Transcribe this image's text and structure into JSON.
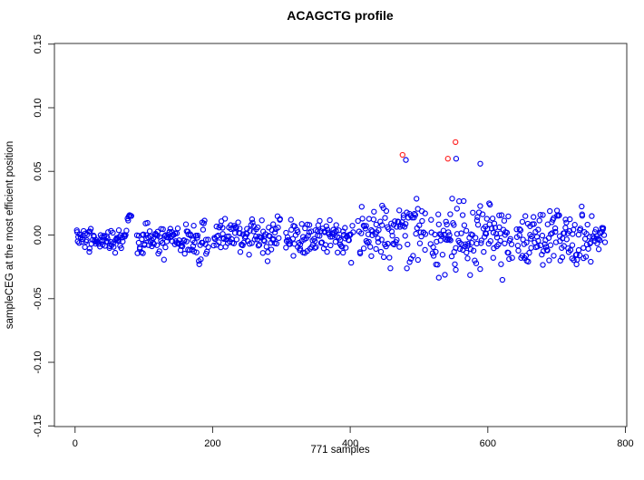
{
  "figure": {
    "title": "ACAGCTG profile",
    "xlabel": "771 samples",
    "ylabel": "sampleCEG at the most efficient position"
  },
  "chart_data": {
    "type": "scatter",
    "title": "ACAGCTG profile",
    "xlabel": "771 samples",
    "ylabel": "sampleCEG at the most efficient position",
    "n_samples": 771,
    "x_box": [
      -30,
      802
    ],
    "y_box": [
      -0.1505,
      0.1505
    ],
    "x_ticks": [
      0,
      200,
      400,
      600,
      800
    ],
    "x_tick_labels": [
      "0",
      "200",
      "400",
      "600",
      "800"
    ],
    "y_ticks": [
      -0.15,
      -0.1,
      -0.05,
      0.0,
      0.05,
      0.1,
      0.15
    ],
    "y_tick_labels": [
      "-0.15",
      "-0.10",
      "-0.05",
      "0.00",
      "0.05",
      "0.10",
      "0.15"
    ],
    "colors": {
      "point": "#0000ee",
      "outlier": "#ff2222",
      "axis": "#333333"
    },
    "point_radius": 2.6,
    "point_stroke_width": 1.15,
    "outlier_points": [
      [
        476,
        0.063
      ],
      [
        542,
        0.06
      ],
      [
        553,
        0.073
      ]
    ],
    "notable_blue_points": [
      [
        481,
        0.059
      ],
      [
        554,
        0.06
      ],
      [
        589,
        0.056
      ]
    ],
    "blue_point_generator": {
      "seed": 20170917,
      "segments": [
        {
          "x0": 2,
          "x1": 82,
          "n": 80,
          "bias": -0.004,
          "sigma": 0.0065,
          "lo": -0.02,
          "hi": 0.016,
          "tail_n": 10,
          "tail_rise": 0.034
        },
        {
          "x0": 90,
          "x1": 194,
          "n": 110,
          "bias": -0.004,
          "sigma": 0.01,
          "lo": -0.028,
          "hi": 0.036,
          "tail_n": 0,
          "tail_rise": 0
        },
        {
          "x0": 202,
          "x1": 298,
          "n": 98,
          "bias": 0.001,
          "sigma": 0.011,
          "lo": -0.032,
          "hi": 0.03,
          "tail_n": 0,
          "tail_rise": 0
        },
        {
          "x0": 306,
          "x1": 404,
          "n": 99,
          "bias": -0.002,
          "sigma": 0.01,
          "lo": -0.027,
          "hi": 0.028,
          "tail_n": 0,
          "tail_rise": 0
        },
        {
          "x0": 412,
          "x1": 510,
          "n": 99,
          "bias": 0.003,
          "sigma": 0.016,
          "lo": -0.04,
          "hi": 0.052,
          "tail_n": 0,
          "tail_rise": 0
        },
        {
          "x0": 517,
          "x1": 635,
          "n": 125,
          "bias": -0.002,
          "sigma": 0.021,
          "lo": -0.056,
          "hi": 0.056,
          "tail_n": 0,
          "tail_rise": 0
        },
        {
          "x0": 642,
          "x1": 752,
          "n": 118,
          "bias": -0.003,
          "sigma": 0.015,
          "lo": -0.046,
          "hi": 0.04,
          "tail_n": 0,
          "tail_rise": 0
        },
        {
          "x0": 754,
          "x1": 770,
          "n": 18,
          "bias": 0.0,
          "sigma": 0.006,
          "lo": -0.012,
          "hi": 0.012,
          "tail_n": 0,
          "tail_rise": 0
        }
      ]
    }
  }
}
